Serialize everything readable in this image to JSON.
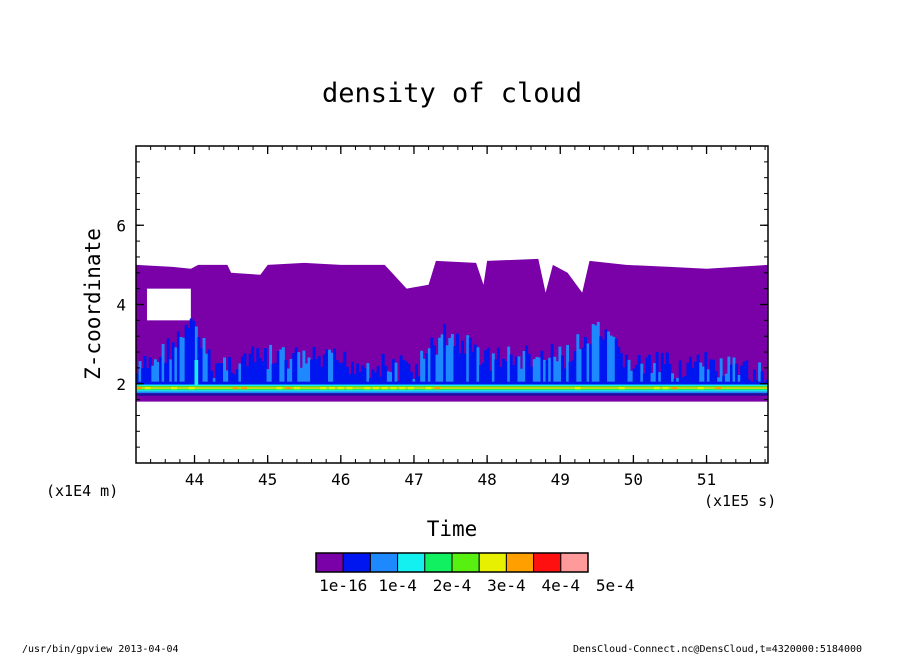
{
  "chart_data": {
    "type": "heatmap",
    "title": "density of cloud",
    "xlabel": "Time",
    "ylabel": "Z-coordinate",
    "x_unit": "(x1E5 s)",
    "y_unit": "(x1E4 m)",
    "xlim": [
      43.2,
      51.84
    ],
    "ylim": [
      0,
      8
    ],
    "x_ticks": [
      44,
      45,
      46,
      47,
      48,
      49,
      50,
      51
    ],
    "y_ticks": [
      2,
      4,
      6
    ],
    "colorbar": {
      "levels": [
        "1e-16",
        "1e-4",
        "2e-4",
        "3e-4",
        "4e-4",
        "5e-4"
      ],
      "colors": [
        "#7a00a8",
        "#0016f0",
        "#1e88ff",
        "#14f0f0",
        "#10f060",
        "#58f010",
        "#e6f000",
        "#ffa000",
        "#ff1010",
        "#ff9a9a"
      ]
    },
    "cloud": {
      "top_profile": [
        [
          43.2,
          5.0
        ],
        [
          43.7,
          4.95
        ],
        [
          43.95,
          4.9
        ],
        [
          44.05,
          5.0
        ],
        [
          44.45,
          5.0
        ],
        [
          44.5,
          4.8
        ],
        [
          44.9,
          4.75
        ],
        [
          45.0,
          5.0
        ],
        [
          45.5,
          5.05
        ],
        [
          46.0,
          5.0
        ],
        [
          46.6,
          5.0
        ],
        [
          46.9,
          4.4
        ],
        [
          47.2,
          4.5
        ],
        [
          47.3,
          5.1
        ],
        [
          47.85,
          5.05
        ],
        [
          47.95,
          4.5
        ],
        [
          48.0,
          5.1
        ],
        [
          48.7,
          5.15
        ],
        [
          48.8,
          4.3
        ],
        [
          48.9,
          5.0
        ],
        [
          49.1,
          4.8
        ],
        [
          49.3,
          4.3
        ],
        [
          49.4,
          5.1
        ],
        [
          49.9,
          5.0
        ],
        [
          50.5,
          4.95
        ],
        [
          51.0,
          4.9
        ],
        [
          51.84,
          5.0
        ]
      ],
      "hole": {
        "x": [
          43.35,
          43.95
        ],
        "y": [
          3.6,
          4.4
        ]
      },
      "bottom": 1.55,
      "core_band": {
        "y": [
          1.75,
          2.05
        ],
        "peak_y": 1.9,
        "max": "4e-4"
      },
      "blue_layer_top": [
        [
          43.2,
          2.6
        ],
        [
          44.0,
          3.8
        ],
        [
          44.2,
          2.8
        ],
        [
          45.0,
          3.0
        ],
        [
          46.0,
          2.9
        ],
        [
          47.0,
          2.7
        ],
        [
          47.4,
          3.6
        ],
        [
          48.0,
          3.0
        ],
        [
          49.0,
          3.0
        ],
        [
          49.5,
          3.6
        ],
        [
          50.0,
          2.8
        ],
        [
          51.0,
          2.8
        ],
        [
          51.84,
          2.5
        ]
      ]
    }
  },
  "footer": {
    "left": "/usr/bin/gpview  2013-04-04",
    "right": "DensCloud-Connect.nc@DensCloud,t=4320000:5184000"
  }
}
